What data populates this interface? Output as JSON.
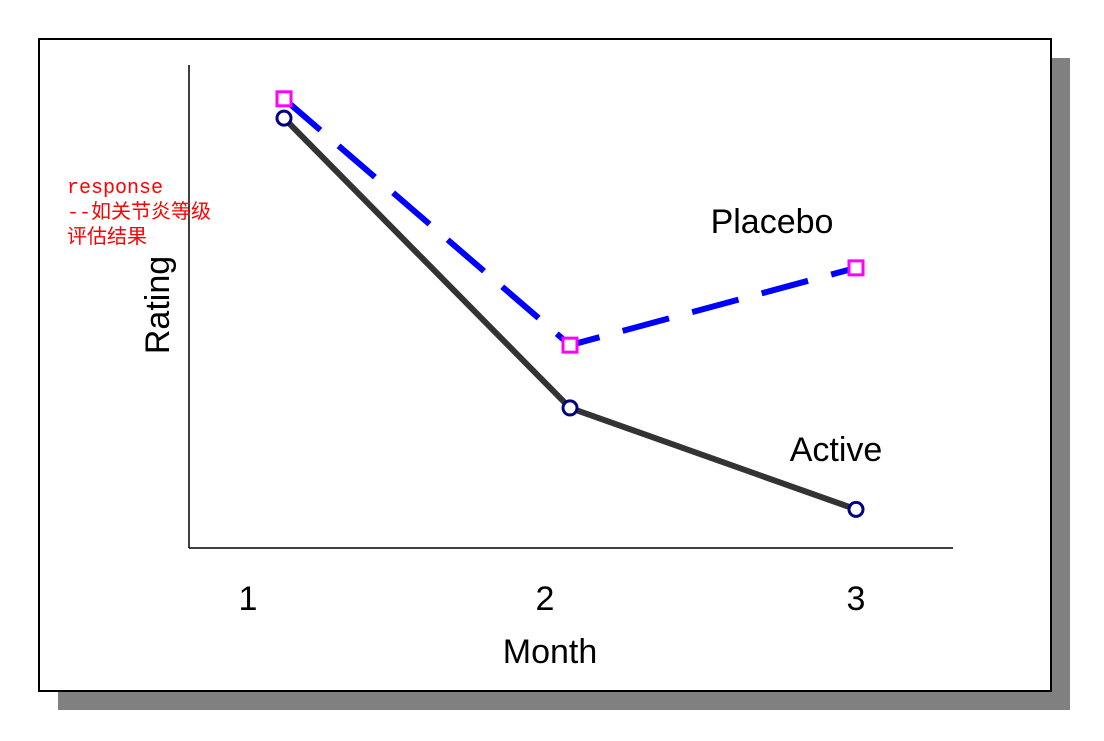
{
  "chart_data": {
    "type": "line",
    "x": [
      1,
      2,
      3
    ],
    "xlabel": "Month",
    "ylabel": "Rating",
    "xticks": [
      "1",
      "2",
      "3"
    ],
    "ylim": [
      0,
      10
    ],
    "grid": false,
    "series": [
      {
        "name": "Placebo",
        "values": [
          9.3,
          4.2,
          5.8
        ],
        "line_color": "#0000ff",
        "line_style": "dashed",
        "marker": "square",
        "marker_color": "#ff00ff"
      },
      {
        "name": "Active",
        "values": [
          8.9,
          2.9,
          0.8
        ],
        "line_color": "#333333",
        "line_style": "solid",
        "marker": "circle",
        "marker_color": "#000080"
      }
    ]
  },
  "annotation": {
    "lines": [
      "response",
      "--如关节炎等级",
      "评估结果"
    ],
    "color": "#ff0000"
  },
  "colors": {
    "frame_border": "#000000",
    "shadow": "#808080",
    "background": "#ffffff"
  }
}
